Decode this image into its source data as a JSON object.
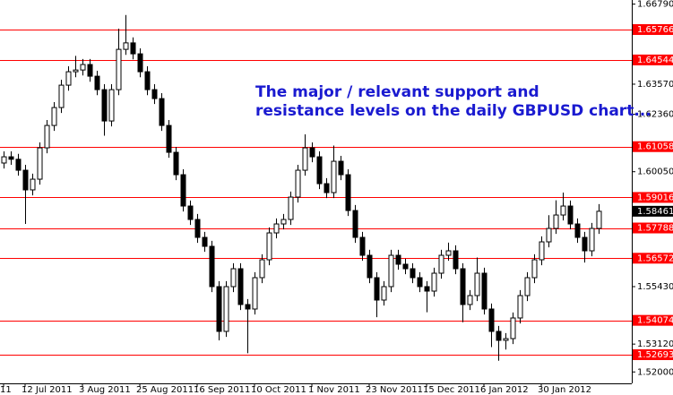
{
  "chart_data": {
    "type": "candlestick",
    "annotation": [
      "The major / relevant support and",
      "resistance levels on the daily GBPUSD chart..."
    ],
    "annotation_color": "#1a1ad0",
    "categories": [
      "11",
      null,
      null,
      "12 Jul 2011",
      null,
      null,
      null,
      null,
      null,
      null,
      null,
      "3 Aug 2011",
      null,
      null,
      null,
      null,
      null,
      null,
      null,
      "25 Aug 2011",
      null,
      null,
      null,
      null,
      null,
      null,
      null,
      "16 Sep 2011",
      null,
      null,
      null,
      null,
      null,
      null,
      null,
      "10 Oct 2011",
      null,
      null,
      null,
      null,
      null,
      null,
      null,
      "1 Nov 2011",
      null,
      null,
      null,
      null,
      null,
      null,
      null,
      "23 Nov 2011",
      null,
      null,
      null,
      null,
      null,
      null,
      null,
      "15 Dec 2011",
      null,
      null,
      null,
      null,
      null,
      null,
      null,
      "6 Jan 2012",
      null,
      null,
      null,
      null,
      null,
      null,
      null,
      "30 Jan 2012",
      null,
      null,
      null,
      null,
      null,
      null,
      null,
      null
    ],
    "open": [
      1.604,
      1.6065,
      1.6055,
      1.6011,
      1.5932,
      1.5975,
      1.6101,
      1.6191,
      1.6263,
      1.6353,
      1.6407,
      1.6414,
      1.6436,
      1.6389,
      1.6335,
      1.6209,
      1.6335,
      1.6497,
      1.6523,
      1.6479,
      1.6407,
      1.6335,
      1.6299,
      1.6191,
      1.6083,
      1.5993,
      1.5867,
      1.5813,
      1.5741,
      1.5705,
      1.5543,
      1.5363,
      1.5543,
      1.5615,
      1.5471,
      1.5453,
      1.5579,
      1.5651,
      1.5759,
      1.5795,
      1.5813,
      1.5903,
      1.6011,
      1.6101,
      1.6065,
      1.5957,
      1.5921,
      1.6047,
      1.5993,
      1.5849,
      1.5741,
      1.5669,
      1.5579,
      1.5489,
      1.5543,
      1.5669,
      1.5633,
      1.5615,
      1.5579,
      1.5543,
      1.5525,
      1.5597,
      1.5669,
      1.5687,
      1.5615,
      1.5471,
      1.5507,
      1.5597,
      1.5453,
      1.5363,
      1.5327,
      1.5334,
      1.5417,
      1.5507,
      1.5579,
      1.5651,
      1.5723,
      1.5777,
      1.5831,
      1.5867,
      1.5795,
      1.5741,
      1.5687,
      1.5777
    ],
    "high": [
      1.6087,
      1.6087,
      1.6077,
      1.6033,
      1.5997,
      1.6123,
      1.6213,
      1.6285,
      1.6375,
      1.6429,
      1.6471,
      1.6458,
      1.6458,
      1.6411,
      1.6357,
      1.6357,
      1.658,
      1.6635,
      1.6545,
      1.6501,
      1.6429,
      1.6357,
      1.6321,
      1.6213,
      1.6105,
      1.6015,
      1.5889,
      1.5835,
      1.5763,
      1.5727,
      1.5565,
      1.5565,
      1.5637,
      1.5637,
      1.5493,
      1.5601,
      1.5673,
      1.5781,
      1.5817,
      1.5835,
      1.5925,
      1.6033,
      1.6155,
      1.6123,
      1.6087,
      1.5979,
      1.611,
      1.6069,
      1.6015,
      1.5871,
      1.5763,
      1.5691,
      1.5601,
      1.5565,
      1.5691,
      1.5691,
      1.5655,
      1.5637,
      1.5601,
      1.5565,
      1.5619,
      1.5691,
      1.572,
      1.5709,
      1.5637,
      1.5529,
      1.566,
      1.5619,
      1.5475,
      1.5385,
      1.5356,
      1.5439,
      1.5529,
      1.5601,
      1.5673,
      1.5745,
      1.583,
      1.589,
      1.5921,
      1.5889,
      1.5817,
      1.5763,
      1.5799,
      1.5875
    ],
    "low": [
      1.6018,
      1.6033,
      1.5989,
      1.5795,
      1.591,
      1.5953,
      1.6079,
      1.6169,
      1.6241,
      1.6331,
      1.6385,
      1.6392,
      1.6367,
      1.6313,
      1.615,
      1.6187,
      1.6313,
      1.6475,
      1.6457,
      1.6385,
      1.6313,
      1.6277,
      1.6169,
      1.6061,
      1.5971,
      1.5845,
      1.5791,
      1.5719,
      1.5683,
      1.5521,
      1.5327,
      1.5341,
      1.5521,
      1.5449,
      1.5275,
      1.5431,
      1.5557,
      1.5629,
      1.5737,
      1.5773,
      1.5791,
      1.5881,
      1.5989,
      1.6043,
      1.5935,
      1.5899,
      1.5899,
      1.5971,
      1.5827,
      1.5719,
      1.5647,
      1.5557,
      1.542,
      1.5467,
      1.5521,
      1.5611,
      1.5593,
      1.5557,
      1.5521,
      1.544,
      1.5503,
      1.5575,
      1.5647,
      1.5593,
      1.54,
      1.5449,
      1.5485,
      1.5431,
      1.53,
      1.5245,
      1.529,
      1.5312,
      1.5395,
      1.5485,
      1.5557,
      1.5629,
      1.5701,
      1.5755,
      1.5809,
      1.5773,
      1.5719,
      1.564,
      1.5665,
      1.5755
    ],
    "close": [
      1.6065,
      1.6055,
      1.6011,
      1.5932,
      1.5975,
      1.6101,
      1.6191,
      1.6263,
      1.6353,
      1.6407,
      1.6414,
      1.6436,
      1.6389,
      1.6335,
      1.6209,
      1.6335,
      1.6497,
      1.6523,
      1.6479,
      1.6407,
      1.6335,
      1.6299,
      1.6191,
      1.6083,
      1.5993,
      1.5867,
      1.5813,
      1.5741,
      1.5705,
      1.5543,
      1.5363,
      1.5543,
      1.5615,
      1.5471,
      1.5453,
      1.5579,
      1.5651,
      1.5759,
      1.5795,
      1.5813,
      1.5903,
      1.6011,
      1.6101,
      1.6065,
      1.5957,
      1.5921,
      1.6047,
      1.5993,
      1.5849,
      1.5741,
      1.5669,
      1.5579,
      1.5489,
      1.5543,
      1.5669,
      1.5633,
      1.5615,
      1.5579,
      1.5543,
      1.5525,
      1.5597,
      1.5669,
      1.5687,
      1.5615,
      1.5471,
      1.5507,
      1.5597,
      1.5453,
      1.5363,
      1.5327,
      1.5334,
      1.5417,
      1.5507,
      1.5579,
      1.5651,
      1.5723,
      1.5777,
      1.5831,
      1.5867,
      1.5795,
      1.5741,
      1.5687,
      1.5777,
      1.5846
    ],
    "up_color": "#ffffff",
    "down_color": "#000000",
    "ylim": [
      1.51541,
      1.66954
    ],
    "yticks": [
      {
        "value": 1.6679,
        "label": "1.66790"
      },
      {
        "value": 1.6357,
        "label": "1.63570"
      },
      {
        "value": 1.6236,
        "label": "1.62360"
      },
      {
        "value": 1.6005,
        "label": "1.60050"
      },
      {
        "value": 1.5543,
        "label": "1.55430"
      },
      {
        "value": 1.5312,
        "label": "1.53120"
      },
      {
        "value": 1.52,
        "label": "1.52000"
      }
    ],
    "levels": [
      1.65766,
      1.64544,
      1.61058,
      1.59016,
      1.57788,
      1.56572,
      1.54074,
      1.52693
    ],
    "level_color": "#ff0000",
    "current_price": 1.58461
  }
}
